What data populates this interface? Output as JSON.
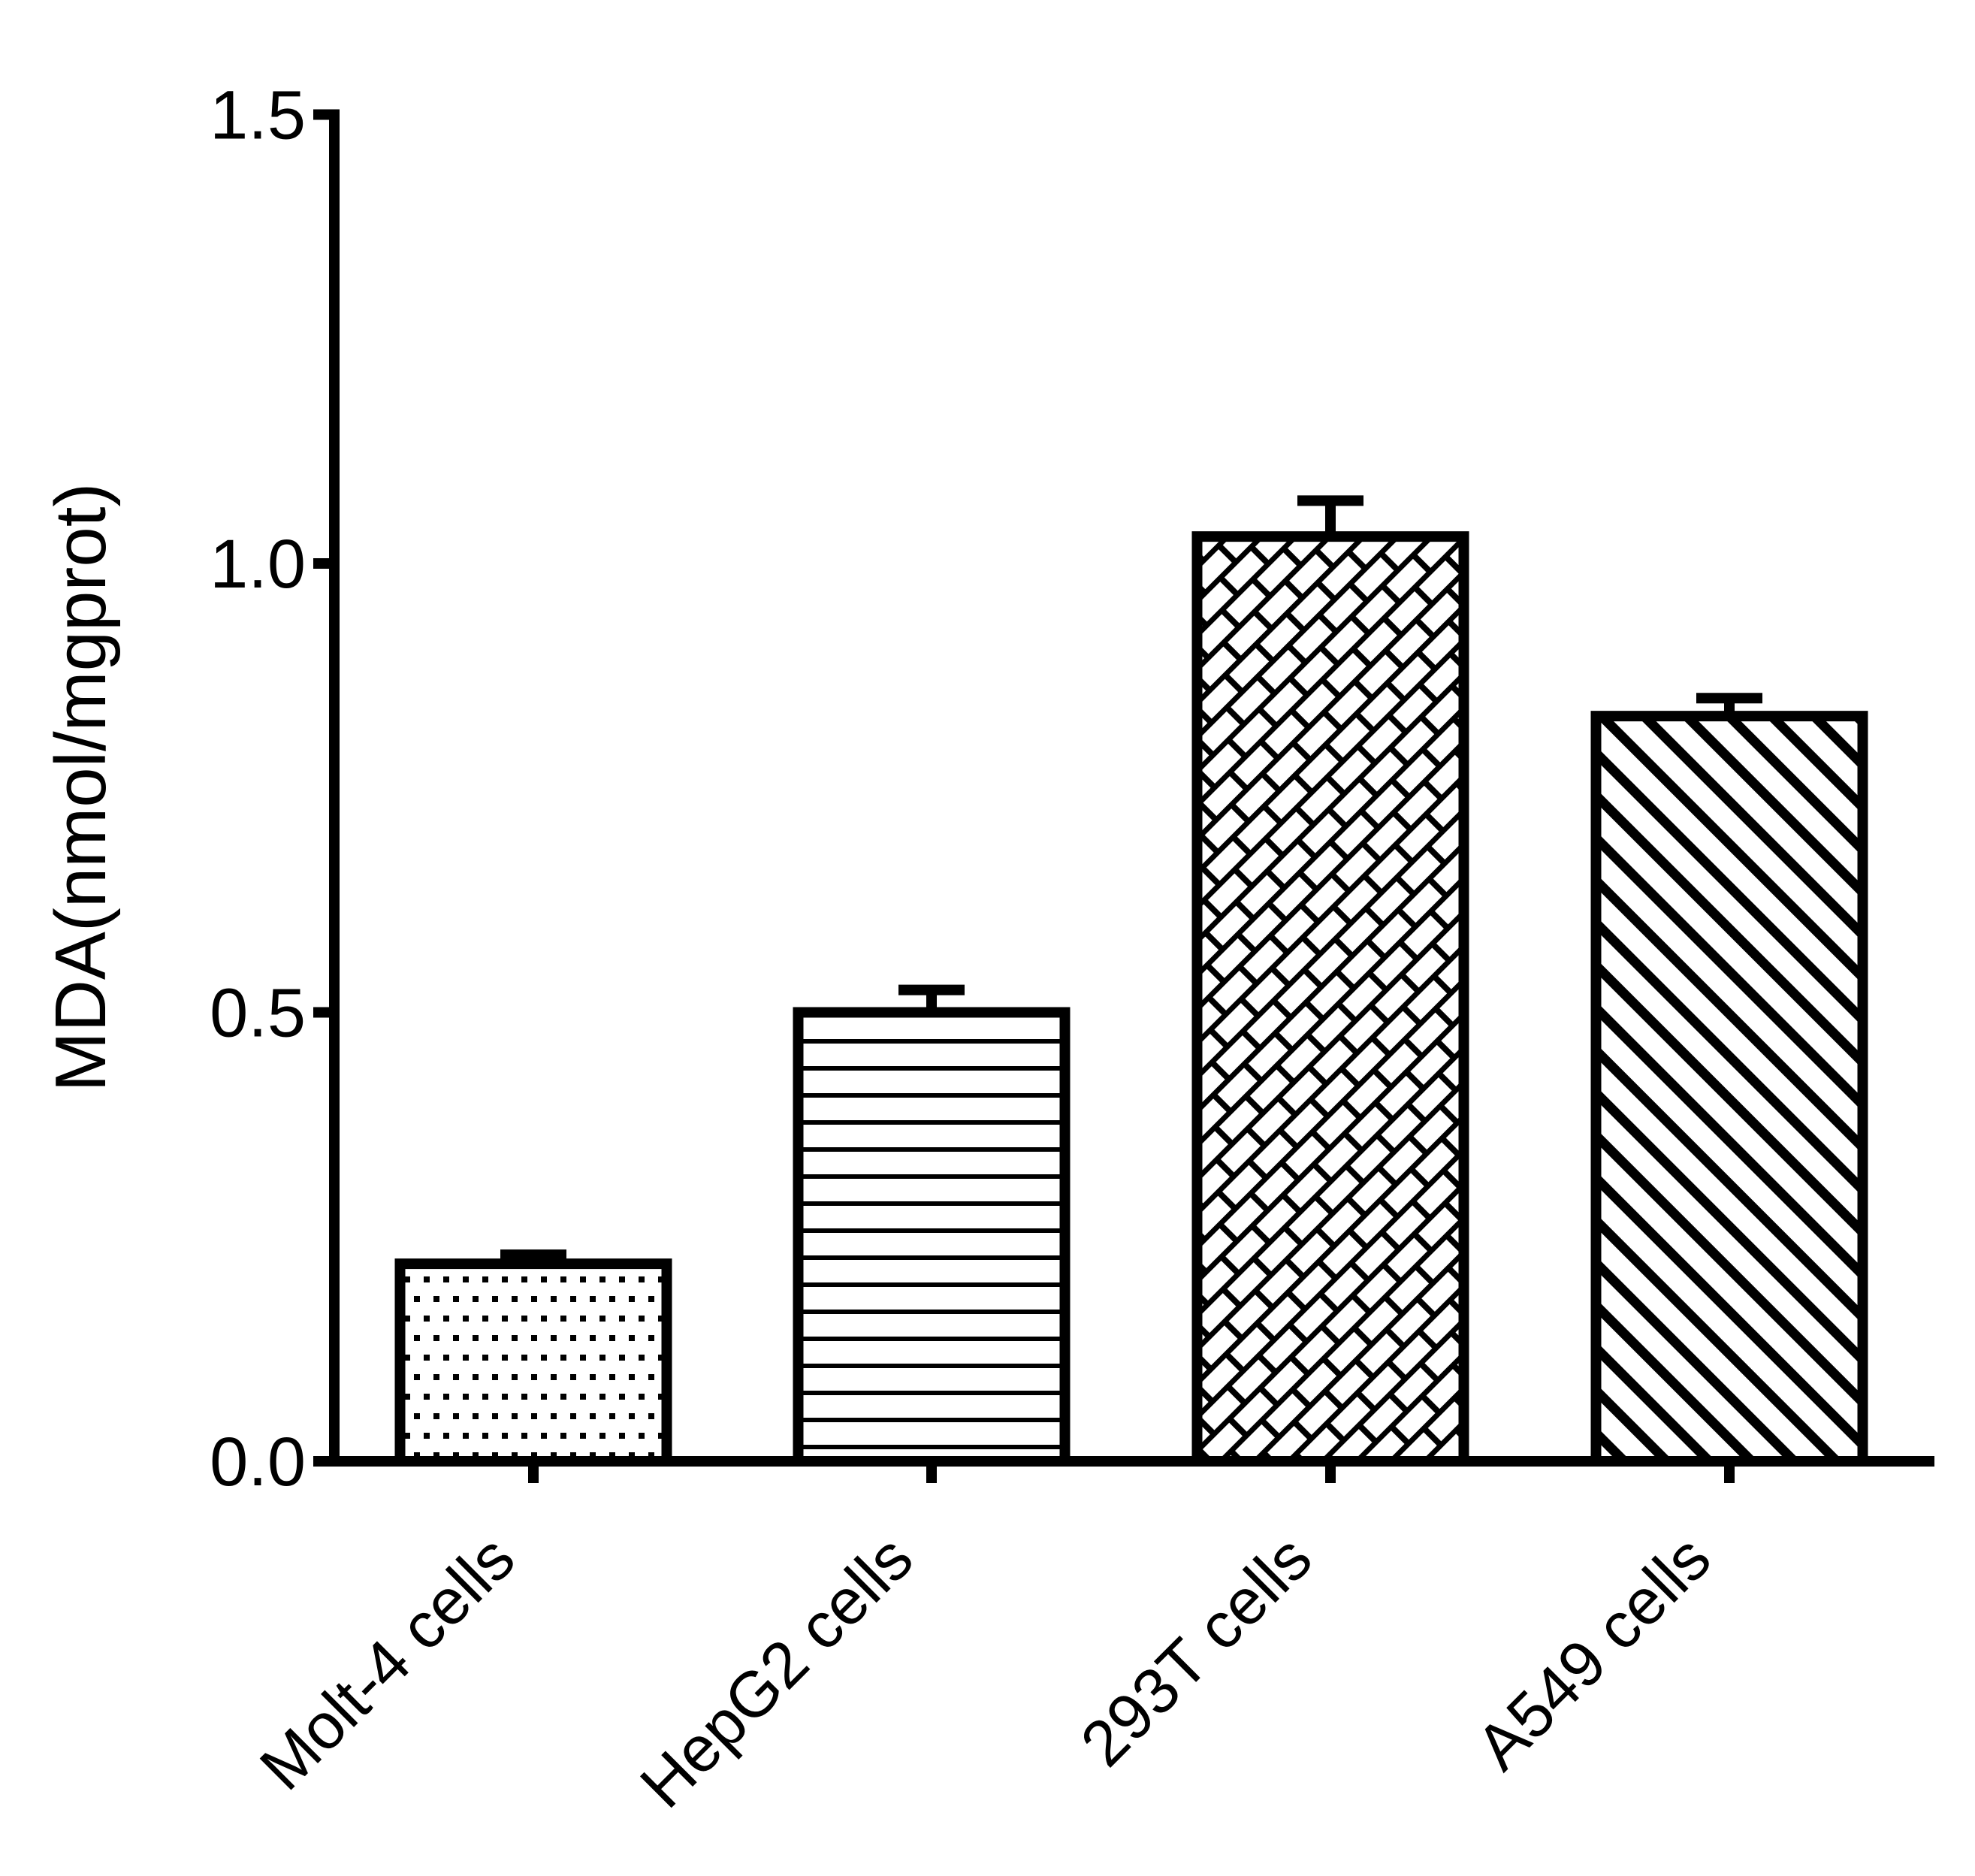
{
  "figure": {
    "background_color": "#ffffff",
    "foreground_color": "#000000"
  },
  "chart_data": {
    "type": "bar",
    "title": "",
    "xlabel": "",
    "ylabel": "MDA(nmol/mgprot)",
    "categories": [
      "Molt-4 cells",
      "HepG2 cells",
      "293T cells",
      "A549 cells"
    ],
    "values": [
      0.22,
      0.5,
      1.03,
      0.83
    ],
    "error_bars": [
      0.01,
      0.025,
      0.04,
      0.02
    ],
    "error_bar_style": "upper-only-capped",
    "ylim": [
      0,
      1.5
    ],
    "yticks": [
      0,
      0.5,
      1,
      1.5
    ],
    "ytick_labels": [
      "0.0",
      "0.5",
      "1.0",
      "1.5"
    ],
    "xtick_label_rotation_deg": 45,
    "grid": false,
    "legend": "none",
    "bar_fill": "#ffffff",
    "bar_stroke": "#000000",
    "bar_patterns": [
      "dots",
      "horizontal-lines",
      "diagonal-bricks",
      "diagonal-stripes"
    ]
  }
}
